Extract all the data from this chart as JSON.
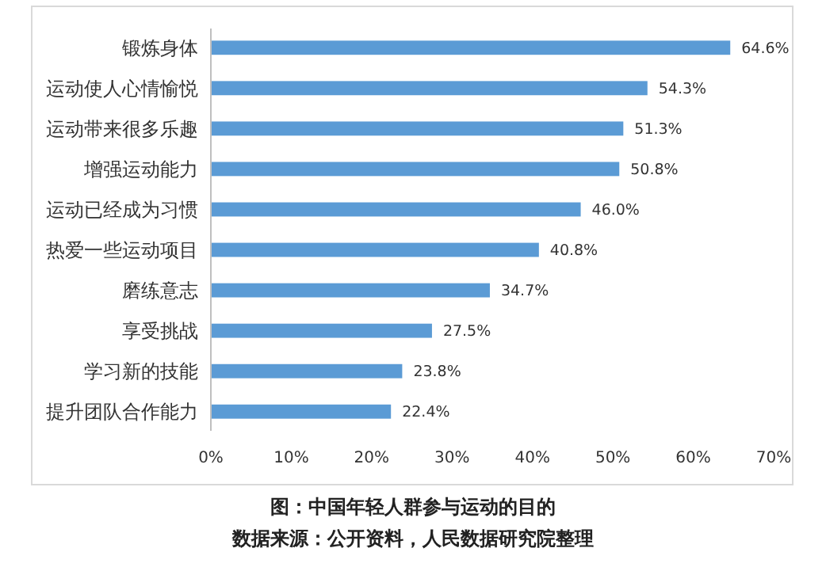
{
  "chart_data": {
    "type": "bar",
    "orientation": "horizontal",
    "categories": [
      "锻炼身体",
      "运动使人心情愉悦",
      "运动带来很多乐趣",
      "增强运动能力",
      "运动已经成为习惯",
      "热爱一些运动项目",
      "磨练意志",
      "享受挑战",
      "学习新的技能",
      "提升团队合作能力"
    ],
    "values": [
      64.6,
      54.3,
      51.3,
      50.8,
      46.0,
      40.8,
      34.7,
      27.5,
      23.8,
      22.4
    ],
    "value_labels": [
      "64.6%",
      "54.3%",
      "51.3%",
      "50.8%",
      "46.0%",
      "40.8%",
      "34.7%",
      "27.5%",
      "23.8%",
      "22.4%"
    ],
    "color": "#5b9bd5",
    "xlim": [
      0,
      70
    ],
    "xticks": [
      {
        "value": 0,
        "label": "0%"
      },
      {
        "value": 10,
        "label": "10%"
      },
      {
        "value": 20,
        "label": "20%"
      },
      {
        "value": 30,
        "label": "30%"
      },
      {
        "value": 40,
        "label": "40%"
      },
      {
        "value": 50,
        "label": "50%"
      },
      {
        "value": 60,
        "label": "60%"
      },
      {
        "value": 70,
        "label": "70%"
      }
    ],
    "grid": false,
    "annotations": [
      "图：中国年轻人群参与运动的目的",
      "数据来源：公开资料，人民数据研究院整理"
    ]
  }
}
